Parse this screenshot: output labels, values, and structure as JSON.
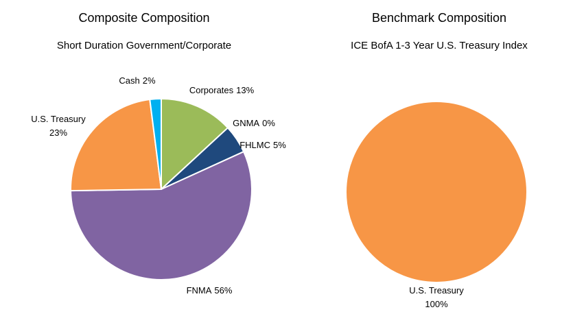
{
  "chart_data": [
    {
      "type": "pie",
      "title": "Composite Composition",
      "subtitle": "Short Duration Government/Corporate",
      "categories": [
        "Corporates",
        "GNMA",
        "FHLMC",
        "FNMA",
        "U.S. Treasury",
        "Cash"
      ],
      "values": [
        13,
        0,
        5,
        56,
        23,
        2
      ],
      "value_labels": [
        "13%",
        "0%",
        "5%",
        "56%",
        "23%",
        "2%"
      ],
      "colors": [
        "#9bbb59",
        "#4bacc6",
        "#1f497d",
        "#8064a2",
        "#f79646",
        "#00b0f0"
      ]
    },
    {
      "type": "pie",
      "title": "Benchmark Composition",
      "subtitle": "ICE BofA 1-3 Year U.S. Treasury Index",
      "categories": [
        "U.S. Treasury"
      ],
      "values": [
        100
      ],
      "value_labels": [
        "100%"
      ],
      "colors": [
        "#f79646"
      ]
    }
  ]
}
